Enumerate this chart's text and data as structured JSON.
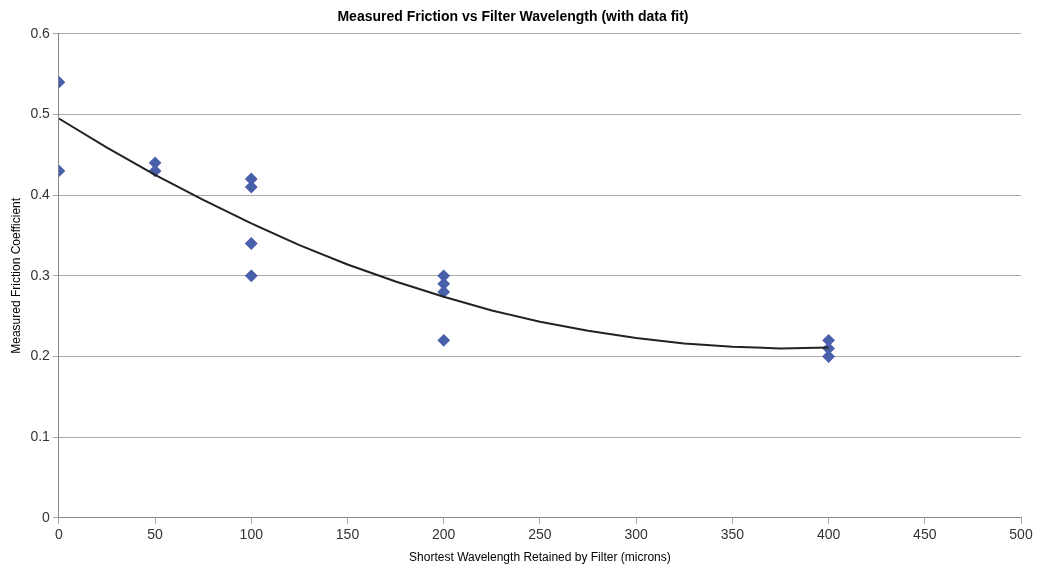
{
  "chart_data": {
    "type": "scatter",
    "title": "Measured Friction vs Filter Wavelength (with data fit)",
    "xlabel": "Shortest Wavelength Retained by Filter (microns)",
    "ylabel": "Measured Friction Coefficient",
    "series": [
      {
        "type": "line",
        "color": "#222222",
        "marker": "none",
        "line_style": "solid",
        "x": [
          0,
          25,
          50,
          75,
          100,
          125,
          150,
          175,
          200,
          225,
          250,
          275,
          300,
          325,
          350,
          375,
          400
        ],
        "values": [
          0.495,
          0.459,
          0.425,
          0.394,
          0.365,
          0.338,
          0.314,
          0.293,
          0.274,
          0.257,
          0.243,
          0.232,
          0.223,
          0.216,
          0.212,
          0.21,
          0.211
        ]
      },
      {
        "type": "scatter",
        "color": "#4a5faa",
        "marker": "diamond",
        "x": [
          0,
          0,
          50,
          50,
          100,
          100,
          100,
          100,
          200,
          200,
          200,
          200,
          400,
          400,
          400
        ],
        "values": [
          0.54,
          0.43,
          0.44,
          0.43,
          0.42,
          0.41,
          0.34,
          0.3,
          0.3,
          0.29,
          0.28,
          0.22,
          0.22,
          0.21,
          0.2
        ]
      }
    ],
    "xlim": [
      0,
      500
    ],
    "xticks": [
      0,
      50,
      100,
      150,
      200,
      250,
      300,
      350,
      400,
      450,
      500
    ],
    "ylim": [
      0,
      0.6
    ],
    "yticks": [
      0,
      0.1,
      0.2,
      0.3,
      0.4,
      0.5,
      0.6
    ],
    "grid": "y",
    "legend": false
  }
}
